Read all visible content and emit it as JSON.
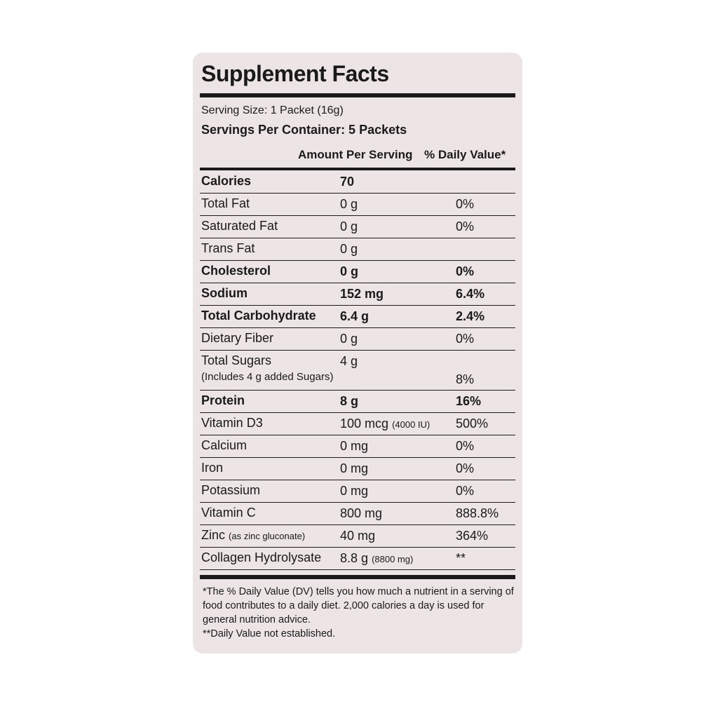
{
  "title": "Supplement Facts",
  "serving_size": "Serving Size: 1 Packet (16g)",
  "servings_per_container": "Servings Per Container: 5 Packets",
  "header": {
    "amount": "Amount Per Serving",
    "daily_value": "% Daily Value*"
  },
  "rows": [
    {
      "name": "Calories",
      "amount": "70",
      "bold": true
    },
    {
      "name": "Total Fat",
      "amount": "0 g",
      "daily_value": "0%"
    },
    {
      "name": "Saturated Fat",
      "amount": "0 g",
      "daily_value": "0%"
    },
    {
      "name": "Trans Fat",
      "amount": "0 g"
    },
    {
      "name": "Cholesterol",
      "amount": "0 g",
      "daily_value": "0%",
      "bold": true
    },
    {
      "name": "Sodium",
      "amount": "152 mg",
      "daily_value": "6.4%",
      "bold": true
    },
    {
      "name": "Total Carbohydrate",
      "amount": "6.4 g",
      "daily_value": "2.4%",
      "bold": true
    },
    {
      "name": "Dietary Fiber",
      "amount": "0 g",
      "daily_value": "0%"
    },
    {
      "name": "Total Sugars",
      "amount": "4 g",
      "sub": "(Includes 4 g added Sugars)",
      "daily_value": "8%"
    },
    {
      "name": "Protein",
      "amount": "8 g",
      "daily_value": "16%",
      "bold": true
    },
    {
      "name": "Vitamin D3",
      "amount": "100 mcg",
      "amount_note": "(4000 IU)",
      "daily_value": "500%"
    },
    {
      "name": "Calcium",
      "amount": "0 mg",
      "daily_value": "0%"
    },
    {
      "name": "Iron",
      "amount": "0 mg",
      "daily_value": "0%"
    },
    {
      "name": "Potassium",
      "amount": "0 mg",
      "daily_value": "0%"
    },
    {
      "name": "Vitamin C",
      "amount": "800 mg",
      "daily_value": "888.8%"
    },
    {
      "name": "Zinc",
      "name_note": "(as zinc gluconate)",
      "amount": "40 mg",
      "daily_value": "364%"
    },
    {
      "name": "Collagen Hydrolysate",
      "amount": "8.8 g",
      "amount_note": "(8800 mg)",
      "daily_value": "**"
    }
  ],
  "footnotes": [
    "*The % Daily Value (DV) tells you how much a nutrient in a serving of food contributes to a daily diet. 2,000 calories a day is used for general nutrition advice.",
    "**Daily Value not established."
  ]
}
